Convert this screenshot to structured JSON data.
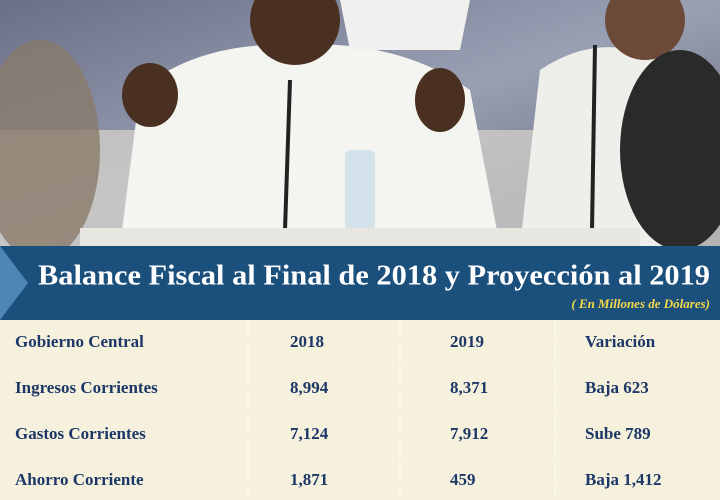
{
  "header": {
    "title": "Balance Fiscal al Final de 2018 y Proyección al 2019",
    "subtitle": "( En Millones de Dólares)"
  },
  "table": {
    "columns": [
      "Gobierno Central",
      "2018",
      "2019",
      "Variación"
    ],
    "rows": [
      [
        "Ingresos  Corrientes",
        "8,994",
        "8,371",
        "Baja 623"
      ],
      [
        "Gastos Corrientes",
        "7,124",
        "7,912",
        "Sube 789"
      ],
      [
        "Ahorro Corriente",
        "1,871",
        "459",
        "Baja 1,412"
      ]
    ]
  }
}
